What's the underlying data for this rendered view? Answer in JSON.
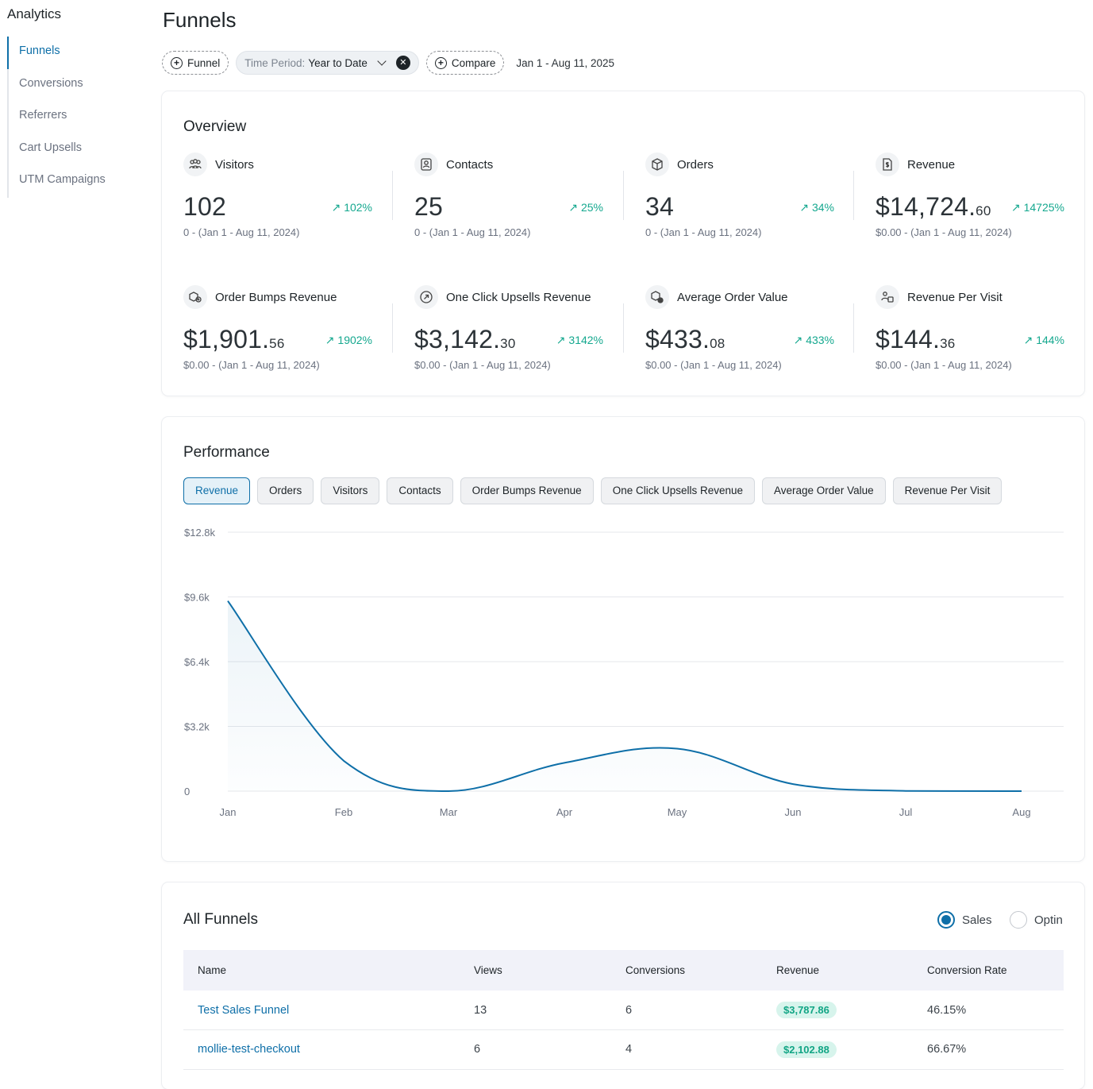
{
  "sidebar": {
    "heading": "Analytics",
    "items": [
      {
        "label": "Funnels",
        "active": true
      },
      {
        "label": "Conversions"
      },
      {
        "label": "Referrers"
      },
      {
        "label": "Cart Upsells"
      },
      {
        "label": "UTM Campaigns"
      }
    ]
  },
  "page_title": "Funnels",
  "filters": {
    "funnel_label": "Funnel",
    "period_prefix": "Time Period:",
    "period_value": "Year to Date",
    "compare_label": "Compare",
    "date_range": "Jan 1 - Aug 11, 2025"
  },
  "overview": {
    "title": "Overview",
    "stats": [
      {
        "label": "Visitors",
        "value": "102",
        "cents": "",
        "change": "102%",
        "prev": "0 - (Jan 1 - Aug 11, 2024)",
        "icon": "visitors-icon"
      },
      {
        "label": "Contacts",
        "value": "25",
        "cents": "",
        "change": "25%",
        "prev": "0 - (Jan 1 - Aug 11, 2024)",
        "icon": "contacts-icon"
      },
      {
        "label": "Orders",
        "value": "34",
        "cents": "",
        "change": "34%",
        "prev": "0 - (Jan 1 - Aug 11, 2024)",
        "icon": "box-icon"
      },
      {
        "label": "Revenue",
        "value": "$14,724.",
        "cents": "60",
        "change": "14725%",
        "prev": "$0.00 - (Jan 1 - Aug 11, 2024)",
        "icon": "revenue-icon"
      },
      {
        "label": "Order Bumps Revenue",
        "value": "$1,901.",
        "cents": "56",
        "change": "1902%",
        "prev": "$0.00 - (Jan 1 - Aug 11, 2024)",
        "icon": "order-bump-icon"
      },
      {
        "label": "One Click Upsells Revenue",
        "value": "$3,142.",
        "cents": "30",
        "change": "3142%",
        "prev": "$0.00 - (Jan 1 - Aug 11, 2024)",
        "icon": "upsell-arrow-icon"
      },
      {
        "label": "Average Order Value",
        "value": "$433.",
        "cents": "08",
        "change": "433%",
        "prev": "$0.00 - (Jan 1 - Aug 11, 2024)",
        "icon": "average-order-icon"
      },
      {
        "label": "Revenue Per Visit",
        "value": "$144.",
        "cents": "36",
        "change": "144%",
        "prev": "$0.00 - (Jan 1 - Aug 11, 2024)",
        "icon": "revenue-per-visit-icon"
      }
    ]
  },
  "performance": {
    "title": "Performance",
    "tabs": [
      "Revenue",
      "Orders",
      "Visitors",
      "Contacts",
      "Order Bumps Revenue",
      "One Click Upsells Revenue",
      "Average Order Value",
      "Revenue Per Visit"
    ],
    "active_tab": "Revenue"
  },
  "chart_data": {
    "type": "area",
    "categories": [
      "Jan",
      "Feb",
      "Mar",
      "Apr",
      "May",
      "Jun",
      "Jul",
      "Aug"
    ],
    "series": [
      {
        "values": [
          9400,
          1500,
          0,
          1400,
          2100,
          350,
          10,
          0
        ]
      }
    ],
    "y_ticks": [
      "0",
      "$3.2k",
      "$6.4k",
      "$9.6k",
      "$12.8k"
    ],
    "ylim": [
      0,
      12800
    ],
    "line_color": "#0e6fa8",
    "grid": true
  },
  "all_funnels": {
    "title": "All Funnels",
    "radios": [
      {
        "label": "Sales",
        "checked": true
      },
      {
        "label": "Optin",
        "checked": false
      }
    ],
    "columns": [
      "Name",
      "Views",
      "Conversions",
      "Revenue",
      "Conversion Rate"
    ],
    "rows": [
      {
        "name": "Test Sales Funnel",
        "views": "13",
        "conversions": "6",
        "revenue": "$3,787.86",
        "rate": "46.15%"
      },
      {
        "name": "mollie-test-checkout",
        "views": "6",
        "conversions": "4",
        "revenue": "$2,102.88",
        "rate": "66.67%"
      }
    ]
  },
  "colors": {
    "accent": "#0e6fa8",
    "positive": "#15a88f"
  }
}
